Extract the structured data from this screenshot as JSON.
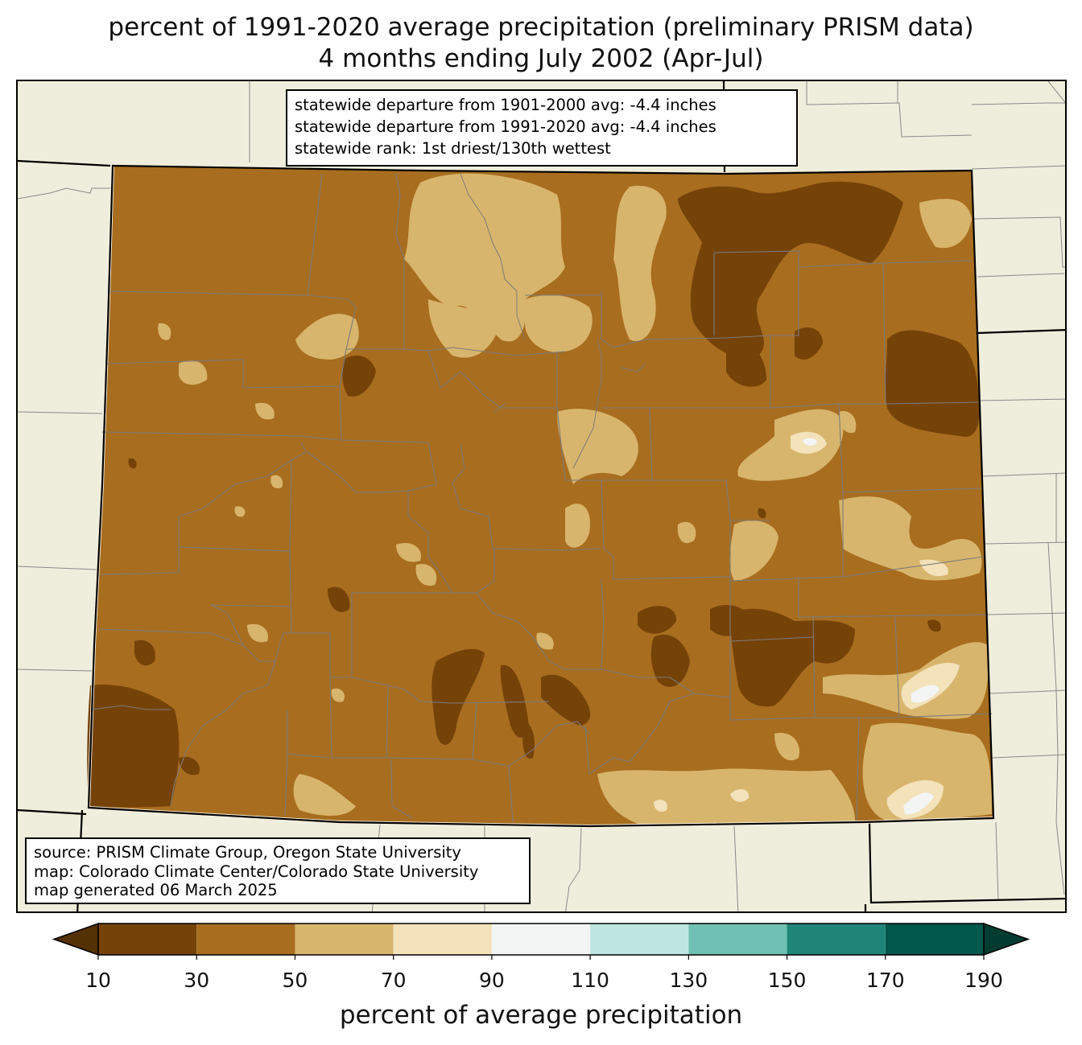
{
  "title": {
    "line1": "percent of 1991-2020 average precipitation (preliminary PRISM data)",
    "line2": "4 months ending July 2002 (Apr-Jul)"
  },
  "stats_box": {
    "line1": "statewide departure from 1901-2000 avg: -4.4 inches",
    "line2": "statewide departure from 1991-2020 avg: -4.4 inches",
    "line3": "statewide rank: 1st driest/130th wettest"
  },
  "source_box": {
    "line1": "source: PRISM Climate Group, Oregon State University",
    "line2": "map: Colorado Climate Center/Colorado State University",
    "line3": "map generated 06 March 2025"
  },
  "colorbar": {
    "label": "percent of average precipitation",
    "ticks": [
      "10",
      "30",
      "50",
      "70",
      "90",
      "110",
      "130",
      "150",
      "170",
      "190"
    ],
    "under_color": "#543005",
    "over_color": "#003c30",
    "bins": [
      {
        "from": 10,
        "to": 30,
        "color": "#754208"
      },
      {
        "from": 30,
        "to": 50,
        "color": "#a86d1f"
      },
      {
        "from": 50,
        "to": 70,
        "color": "#d8b56c"
      },
      {
        "from": 70,
        "to": 90,
        "color": "#f3e2ba"
      },
      {
        "from": 90,
        "to": 110,
        "color": "#f3f5f4"
      },
      {
        "from": 110,
        "to": 130,
        "color": "#bee6e0"
      },
      {
        "from": 130,
        "to": 150,
        "color": "#70c1b3"
      },
      {
        "from": 150,
        "to": 170,
        "color": "#208579"
      },
      {
        "from": 170,
        "to": 190,
        "color": "#02574c"
      }
    ]
  },
  "map": {
    "background": "#efeedc",
    "dominant_class_color": "#a86d1f"
  }
}
